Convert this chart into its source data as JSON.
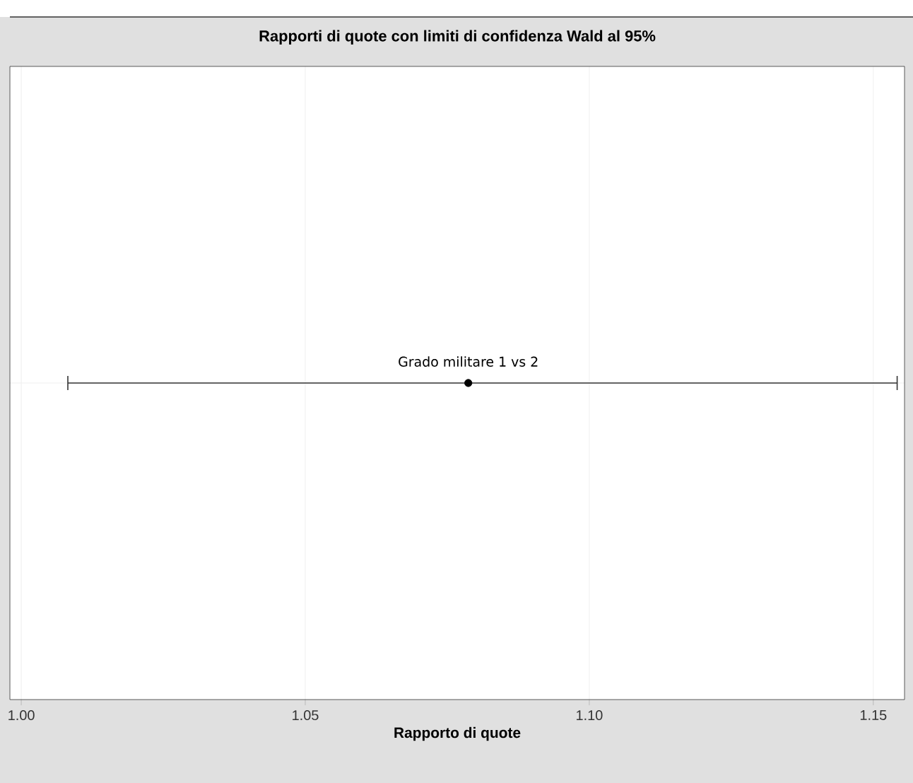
{
  "chart_data": {
    "type": "scatter",
    "title": "Rapporti di quote con limiti di confidenza Wald al 95%",
    "xlabel": "Rapporto di quote",
    "orientation": "horizontal",
    "categories": [
      "Grado militare 1 vs 2"
    ],
    "values": [
      1.0787
    ],
    "errors": [
      [
        1.0082,
        1.1542
      ]
    ],
    "color": "#000000",
    "marker": "circle",
    "xlim": [
      0.998,
      1.1555
    ],
    "xticks": [
      {
        "value": 1.0,
        "label": "1.00"
      },
      {
        "value": 1.05,
        "label": "1.05"
      },
      {
        "value": 1.1,
        "label": "1.10"
      },
      {
        "value": 1.15,
        "label": "1.15"
      }
    ],
    "grid": true,
    "tick_labels": "x"
  }
}
